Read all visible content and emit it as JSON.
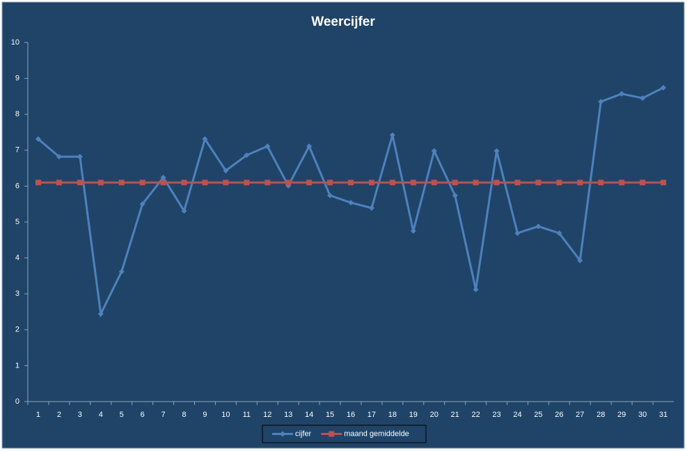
{
  "chart_data": {
    "type": "line",
    "title": "Weercijfer",
    "categories": [
      "1",
      "2",
      "3",
      "4",
      "5",
      "6",
      "7",
      "8",
      "9",
      "10",
      "11",
      "12",
      "13",
      "14",
      "15",
      "16",
      "17",
      "18",
      "19",
      "20",
      "21",
      "22",
      "23",
      "24",
      "25",
      "26",
      "27",
      "28",
      "29",
      "30",
      "31"
    ],
    "series": [
      {
        "name": "cijfer",
        "color": "#4f81bd",
        "marker": "diamond",
        "values": [
          7.31,
          6.82,
          6.82,
          2.44,
          3.62,
          5.5,
          6.24,
          5.31,
          7.31,
          6.43,
          6.86,
          7.11,
          6.01,
          7.11,
          5.74,
          5.54,
          5.39,
          7.42,
          4.75,
          6.98,
          5.74,
          3.12,
          6.98,
          4.69,
          4.88,
          4.69,
          3.93,
          8.35,
          8.57,
          8.45,
          8.74
        ]
      },
      {
        "name": "maand gemiddelde",
        "color": "#c0504d",
        "marker": "square",
        "values": [
          6.1,
          6.1,
          6.1,
          6.1,
          6.1,
          6.1,
          6.1,
          6.1,
          6.1,
          6.1,
          6.1,
          6.1,
          6.1,
          6.1,
          6.1,
          6.1,
          6.1,
          6.1,
          6.1,
          6.1,
          6.1,
          6.1,
          6.1,
          6.1,
          6.1,
          6.1,
          6.1,
          6.1,
          6.1,
          6.1,
          6.1
        ]
      }
    ],
    "ylim": [
      0,
      10
    ],
    "yticks": [
      0,
      1,
      2,
      3,
      4,
      5,
      6,
      7,
      8,
      9,
      10
    ],
    "grid": false,
    "legend": "bottom"
  }
}
